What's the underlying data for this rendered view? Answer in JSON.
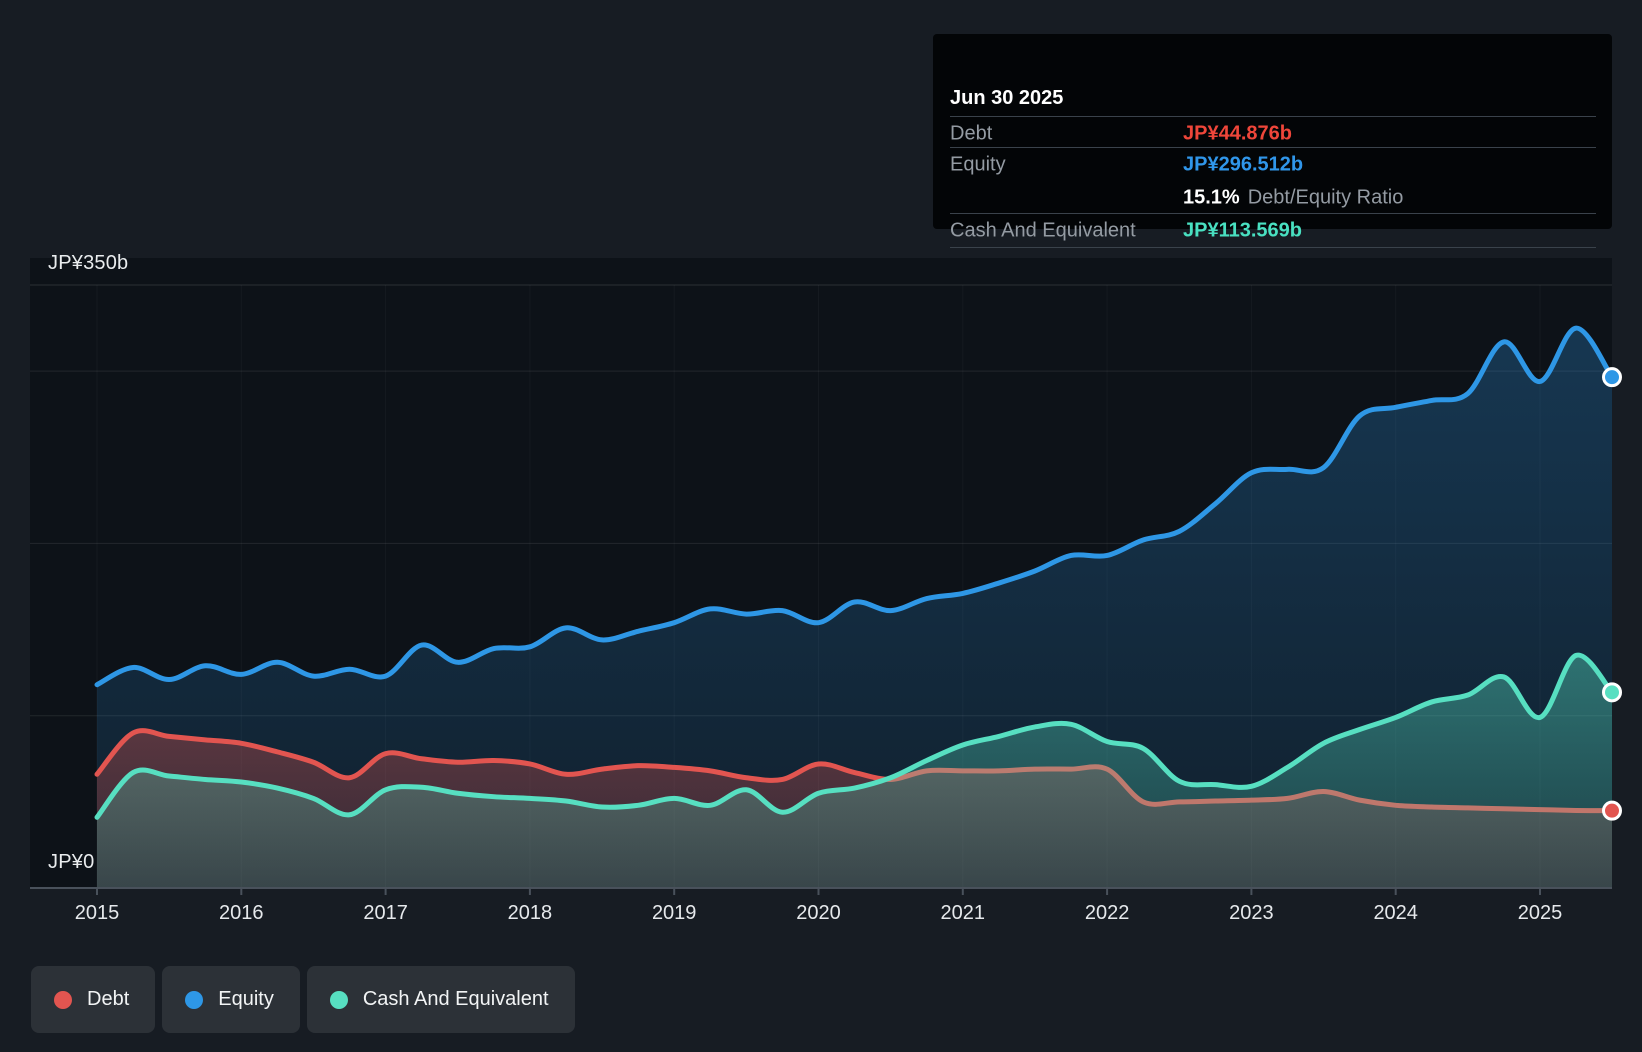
{
  "page": {
    "background": "#171c23",
    "plot_background": "#0d1218"
  },
  "tooltip": {
    "date": "Jun 30 2025",
    "debt_label": "Debt",
    "debt_value": "JP¥44.876b",
    "equity_label": "Equity",
    "equity_value": "JP¥296.512b",
    "ratio_value": "15.1%",
    "ratio_label": "Debt/Equity Ratio",
    "cash_label": "Cash And Equivalent",
    "cash_value": "JP¥113.569b"
  },
  "colors": {
    "debt": "#e25550",
    "equity": "#2e97e6",
    "cash": "#57dfc1",
    "debt_value_text": "#ef463a",
    "equity_value_text": "#3096ea",
    "cash_value_text": "#49e0c1",
    "axis_line": "#49515b",
    "grid_line": "rgba(255,255,255,0.09)",
    "top_grid_line": "rgba(255,255,255,0.13)",
    "year_grid_line": "rgba(255,255,255,0.035)",
    "tick_label": "#e6e9ec"
  },
  "y_axis": {
    "top_label": "JP¥350b",
    "zero_label": "JP¥0"
  },
  "x_axis": {
    "years": [
      "2015",
      "2016",
      "2017",
      "2018",
      "2019",
      "2020",
      "2021",
      "2022",
      "2023",
      "2024",
      "2025"
    ]
  },
  "legend": [
    {
      "label": "Debt",
      "color": "#e25550"
    },
    {
      "label": "Equity",
      "color": "#2e97e6"
    },
    {
      "label": "Cash And Equivalent",
      "color": "#57dfc1"
    }
  ],
  "chart_data": {
    "type": "area",
    "title": "",
    "y_unit": "JP¥ billions",
    "ylim": [
      0,
      350
    ],
    "xlim": [
      2014.54,
      2025.5
    ],
    "y_gridlines": [
      0,
      100,
      200,
      300,
      350
    ],
    "x_ticks": [
      2015,
      2016,
      2017,
      2018,
      2019,
      2020,
      2021,
      2022,
      2023,
      2024,
      2025
    ],
    "legend_position": "bottom-left",
    "grid": true,
    "last_point_markers": true,
    "x": [
      2015.0,
      2015.25,
      2015.5,
      2015.75,
      2016.0,
      2016.25,
      2016.5,
      2016.75,
      2017.0,
      2017.25,
      2017.5,
      2017.75,
      2018.0,
      2018.25,
      2018.5,
      2018.75,
      2019.0,
      2019.25,
      2019.5,
      2019.75,
      2020.0,
      2020.25,
      2020.5,
      2020.75,
      2021.0,
      2021.25,
      2021.5,
      2021.75,
      2022.0,
      2022.25,
      2022.5,
      2022.75,
      2023.0,
      2023.25,
      2023.5,
      2023.75,
      2024.0,
      2024.25,
      2024.5,
      2024.75,
      2025.0,
      2025.25,
      2025.5
    ],
    "series": [
      {
        "name": "Debt",
        "color": "#e25550",
        "values": [
          66,
          90,
          88,
          86,
          84,
          79,
          73,
          64,
          78,
          75,
          73,
          74,
          72,
          66,
          69,
          71,
          70,
          68,
          64,
          63,
          72,
          67,
          63,
          68,
          68,
          68,
          69,
          69,
          69,
          50,
          50,
          50.5,
          51,
          52,
          56,
          51,
          48,
          47,
          46.5,
          46,
          45.5,
          45,
          44.876
        ]
      },
      {
        "name": "Equity",
        "color": "#2e97e6",
        "values": [
          118,
          128,
          121,
          129,
          124,
          131,
          123,
          127,
          123,
          141,
          131,
          139,
          140,
          151,
          144,
          149,
          154,
          162,
          159,
          161,
          154,
          166,
          161,
          168,
          171,
          177,
          184,
          193,
          193,
          202,
          207,
          223,
          241,
          243,
          244,
          274,
          279,
          283,
          287,
          317,
          294,
          325,
          296.512
        ]
      },
      {
        "name": "Cash And Equivalent",
        "color": "#57dfc1",
        "values": [
          41,
          67,
          65,
          63,
          61.5,
          58,
          52,
          42.5,
          57,
          58.5,
          55,
          53,
          52,
          50.5,
          47,
          48,
          52,
          48,
          57,
          44,
          55,
          58,
          64,
          74,
          83,
          88,
          93.5,
          95,
          85,
          81,
          62,
          60,
          59,
          70,
          84,
          92,
          99,
          108,
          112,
          122.5,
          99,
          135,
          113.569
        ]
      }
    ]
  }
}
